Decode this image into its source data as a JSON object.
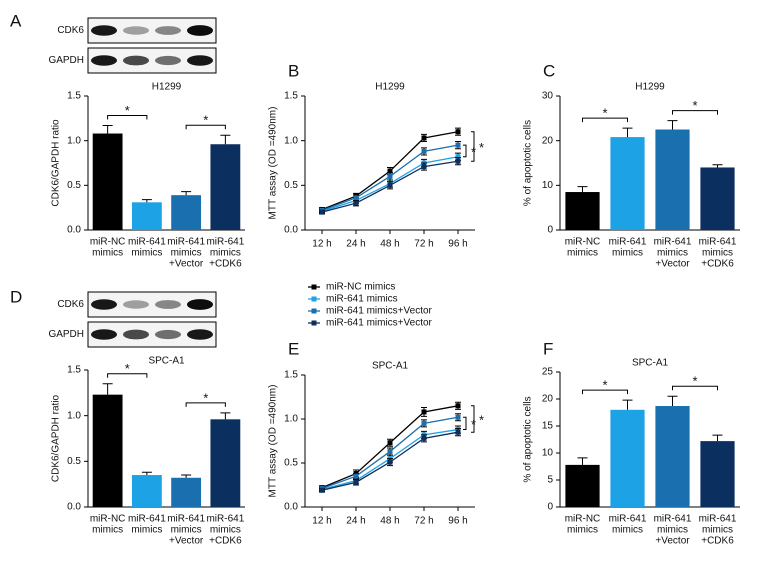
{
  "chart_data": [
    {
      "type": "bar",
      "panel": "A",
      "blot_labels": [
        "CDK6",
        "GAPDH"
      ],
      "title": "H1299",
      "ylabel": "CDK6/GAPDH ratio",
      "categories": [
        [
          "miR-NC",
          "mimics"
        ],
        [
          "miR-641",
          "mimics"
        ],
        [
          "miR-641",
          "mimics",
          "+Vector"
        ],
        [
          "miR-641",
          "mimics",
          "+CDK6"
        ]
      ],
      "values": [
        1.08,
        0.31,
        0.39,
        0.96
      ],
      "errors": [
        0.09,
        0.03,
        0.04,
        0.1
      ],
      "colors": [
        "#000000",
        "#1ea2e6",
        "#1a6fae",
        "#0b2f5e"
      ],
      "ylim": [
        0,
        1.5
      ],
      "yticks": [
        {
          "value": 0,
          "label": "0.0"
        },
        0.5,
        {
          "value": 1,
          "label": "1.0"
        },
        1.5
      ],
      "annotations": [
        "*",
        "*"
      ]
    },
    {
      "type": "line",
      "panel": "B",
      "title": "H1299",
      "ylabel": "MTT assay (OD =490nm)",
      "categories": [
        "12 h",
        "24 h",
        "48 h",
        "72 h",
        "96 h"
      ],
      "series": [
        {
          "name": "miR-NC mimics",
          "color": "#000000",
          "values": [
            0.23,
            0.38,
            0.66,
            1.03,
            1.1
          ],
          "errors": [
            0.02,
            0.03,
            0.04,
            0.04,
            0.04
          ]
        },
        {
          "name": "miR-641 mimics",
          "color": "#1ea2e6",
          "values": [
            0.21,
            0.33,
            0.52,
            0.75,
            0.82
          ],
          "errors": [
            0.02,
            0.03,
            0.04,
            0.04,
            0.04
          ]
        },
        {
          "name": "miR-641 mimics+Vector",
          "color": "#1a6fae",
          "values": [
            0.22,
            0.36,
            0.6,
            0.88,
            0.95
          ],
          "errors": [
            0.02,
            0.03,
            0.04,
            0.04,
            0.04
          ]
        },
        {
          "name": "miR-641 mimics+Vector",
          "color": "#0b2f5e",
          "values": [
            0.2,
            0.3,
            0.5,
            0.71,
            0.77
          ],
          "errors": [
            0.02,
            0.03,
            0.04,
            0.04,
            0.04
          ]
        }
      ],
      "ylim": [
        0,
        1.5
      ],
      "yticks": [
        {
          "value": 0,
          "label": "0.0"
        },
        0.5,
        {
          "value": 1,
          "label": "1.0"
        },
        1.5
      ],
      "annotations": [
        "*",
        "*"
      ]
    },
    {
      "type": "bar",
      "panel": "C",
      "title": "H1299",
      "ylabel": "% of apoptotic cells",
      "categories": [
        [
          "miR-NC",
          "mimics"
        ],
        [
          "miR-641",
          "mimics"
        ],
        [
          "miR-641",
          "mimics",
          "+Vector"
        ],
        [
          "miR-641",
          "mimics",
          "+CDK6"
        ]
      ],
      "values": [
        8.5,
        20.8,
        22.5,
        14.0
      ],
      "errors": [
        1.2,
        2.0,
        2.0,
        0.6
      ],
      "colors": [
        "#000000",
        "#1ea2e6",
        "#1a6fae",
        "#0b2f5e"
      ],
      "ylim": [
        0,
        30
      ],
      "yticks": [
        0,
        10,
        20,
        30
      ],
      "annotations": [
        "*",
        "*"
      ]
    },
    {
      "type": "bar",
      "panel": "D",
      "blot_labels": [
        "CDK6",
        "GAPDH"
      ],
      "title": "SPC-A1",
      "ylabel": "CDK6/GAPDH ratio",
      "categories": [
        [
          "miR-NC",
          "mimics"
        ],
        [
          "miR-641",
          "mimics"
        ],
        [
          "miR-641",
          "mimics",
          "+Vector"
        ],
        [
          "miR-641",
          "mimics",
          "+CDK6"
        ]
      ],
      "values": [
        1.23,
        0.35,
        0.32,
        0.96
      ],
      "errors": [
        0.12,
        0.03,
        0.03,
        0.07
      ],
      "colors": [
        "#000000",
        "#1ea2e6",
        "#1a6fae",
        "#0b2f5e"
      ],
      "ylim": [
        0,
        1.5
      ],
      "yticks": [
        {
          "value": 0,
          "label": "0.0"
        },
        0.5,
        {
          "value": 1,
          "label": "1.0"
        },
        1.5
      ],
      "annotations": [
        "*",
        "*"
      ]
    },
    {
      "type": "line",
      "panel": "E",
      "title": "SPC-A1",
      "ylabel": "MTT assay (OD =490nm)",
      "categories": [
        "12 h",
        "24 h",
        "48 h",
        "72 h",
        "96 h"
      ],
      "series": [
        {
          "color": "#000000",
          "values": [
            0.22,
            0.38,
            0.73,
            1.08,
            1.15
          ],
          "errors": [
            0.02,
            0.04,
            0.04,
            0.05,
            0.04
          ]
        },
        {
          "color": "#1ea2e6",
          "values": [
            0.2,
            0.3,
            0.55,
            0.82,
            0.88
          ],
          "errors": [
            0.02,
            0.03,
            0.04,
            0.04,
            0.04
          ]
        },
        {
          "color": "#1a6fae",
          "values": [
            0.21,
            0.35,
            0.63,
            0.95,
            1.02
          ],
          "errors": [
            0.02,
            0.03,
            0.04,
            0.04,
            0.04
          ]
        },
        {
          "color": "#0b2f5e",
          "values": [
            0.19,
            0.28,
            0.51,
            0.78,
            0.85
          ],
          "errors": [
            0.02,
            0.03,
            0.04,
            0.04,
            0.04
          ]
        }
      ],
      "ylim": [
        0,
        1.5
      ],
      "yticks": [
        {
          "value": 0,
          "label": "0.0"
        },
        0.5,
        {
          "value": 1,
          "label": "1.0"
        },
        1.5
      ],
      "annotations": [
        "*",
        "*"
      ]
    },
    {
      "type": "bar",
      "panel": "F",
      "title": "SPC-A1",
      "ylabel": "% of apoptotic cells",
      "categories": [
        [
          "miR-NC",
          "mimics"
        ],
        [
          "miR-641",
          "mimics"
        ],
        [
          "miR-641",
          "mimics",
          "+Vector"
        ],
        [
          "miR-641",
          "mimics",
          "+CDK6"
        ]
      ],
      "values": [
        7.8,
        18.0,
        18.7,
        12.2
      ],
      "errors": [
        1.3,
        1.8,
        1.8,
        1.1
      ],
      "colors": [
        "#000000",
        "#1ea2e6",
        "#1a6fae",
        "#0b2f5e"
      ],
      "ylim": [
        0,
        25
      ],
      "yticks": [
        0,
        5,
        10,
        15,
        20,
        25
      ],
      "annotations": [
        "*",
        "*"
      ]
    }
  ]
}
